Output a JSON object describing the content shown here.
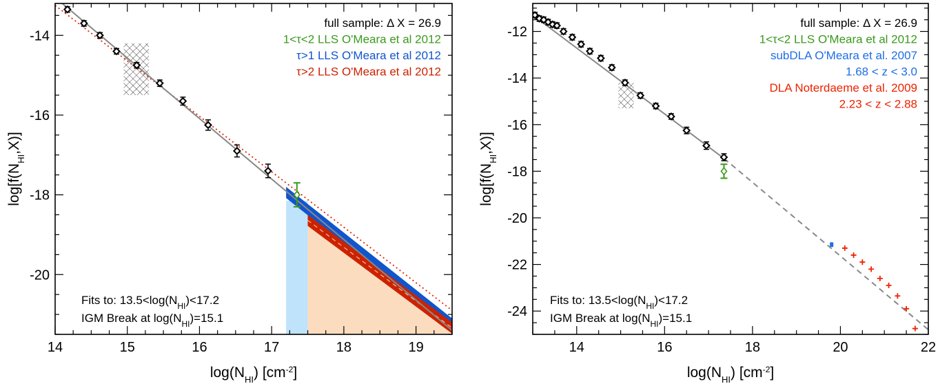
{
  "chart_data": [
    {
      "type": "line",
      "xlabel_main": "log(N",
      "xlabel_sub": "HI",
      "xlabel_tail": ") [cm",
      "xlabel_sup": "-2",
      "xlabel_end": "]",
      "ylabel_main": "log[f(N",
      "ylabel_sub": "HI",
      "ylabel_tail": ",X)]",
      "xlim": [
        14.0,
        19.5
      ],
      "ylim": [
        -21.5,
        -13.2
      ],
      "xticks": [
        14,
        15,
        16,
        17,
        18,
        19
      ],
      "yticks": [
        -14,
        -16,
        -18,
        -20
      ],
      "legend": [
        {
          "text": "full sample: Δ X = 26.9",
          "color": "#000000"
        },
        {
          "text": "1<τ<2 LLS O'Meara et al 2012",
          "color": "#3a9a1c"
        },
        {
          "text": "τ>1 LLS O'Meara et al 2012",
          "color": "#1155cc"
        },
        {
          "text": "τ>2 LLS O'Meara et al 2012",
          "color": "#cc2200"
        }
      ],
      "notes": {
        "line1_pre": "Fits to: 13.5<log(N",
        "line1_sub": "HI",
        "line1_post": ")<17.2",
        "line2_pre": "IGM Break at log(N",
        "line2_sub": "HI",
        "line2_post": ")=15.1"
      },
      "data_points": {
        "x": [
          14.17,
          14.4,
          14.62,
          14.85,
          15.13,
          15.45,
          15.77,
          16.12,
          16.52,
          16.95
        ],
        "y": [
          -13.35,
          -13.7,
          -14.0,
          -14.4,
          -14.75,
          -15.2,
          -15.65,
          -16.25,
          -16.9,
          -17.4
        ],
        "yerr": [
          0.04,
          0.05,
          0.05,
          0.06,
          0.07,
          0.08,
          0.1,
          0.13,
          0.15,
          0.17
        ]
      },
      "hatched_region": {
        "x": [
          14.95,
          15.3
        ],
        "y": [
          -15.5,
          -14.2
        ]
      },
      "fit_line": {
        "x": [
          14.0,
          19.5
        ],
        "y": [
          -13.05,
          -21.4
        ]
      },
      "dotted_line": {
        "x": [
          14.0,
          19.5
        ],
        "y": [
          -13.25,
          -20.9
        ]
      },
      "green_point": {
        "x": 17.35,
        "y": -18.0,
        "yerr_low": 0.3,
        "yerr_high": 0.3
      },
      "blue_band": {
        "x": [
          17.2,
          19.5
        ],
        "y_top_start": -17.8,
        "y_top_end": -21.1,
        "width": 0.28
      },
      "red_band": {
        "x": [
          17.5,
          19.5
        ],
        "y_top_start": -18.5,
        "y_top_end": -21.2,
        "width": 0.28
      },
      "light_blue_region": {
        "x": [
          17.2,
          17.5
        ]
      },
      "peach_region": {
        "x": [
          17.5,
          19.5
        ]
      },
      "colors": {
        "fit": "#888888",
        "dotted": "#dd2200",
        "blue": "#1155cc",
        "red": "#cc2200",
        "green": "#3a9a1c",
        "light_blue": "#bfe3fb",
        "peach": "#fcdcbf"
      }
    },
    {
      "type": "line",
      "xlabel_main": "log(N",
      "xlabel_sub": "HI",
      "xlabel_tail": ") [cm",
      "xlabel_sup": "-2",
      "xlabel_end": "]",
      "ylabel_main": "log[f(N",
      "ylabel_sub": "HI",
      "ylabel_tail": ",X)]",
      "xlim": [
        13.0,
        22.0
      ],
      "ylim": [
        -25.0,
        -10.8
      ],
      "xticks": [
        14,
        16,
        18,
        20,
        22
      ],
      "yticks": [
        -12,
        -14,
        -16,
        -18,
        -20,
        -22,
        -24
      ],
      "legend": [
        {
          "text": "full sample: Δ X = 26.9",
          "color": "#000000"
        },
        {
          "text": "1<τ<2 LLS O'Meara et al 2012",
          "color": "#3a9a1c"
        },
        {
          "text": "subDLA O'Meara et al. 2007",
          "color": "#1e6ee6"
        },
        {
          "text": "1.68 < z < 3.0",
          "color": "#1e6ee6"
        },
        {
          "text": "DLA Noterdaeme et al. 2009",
          "color": "#ee2200"
        },
        {
          "text": "2.23 < z < 2.88",
          "color": "#ee2200"
        }
      ],
      "notes": {
        "line1_pre": "Fits to: 13.5<log(N",
        "line1_sub": "HI",
        "line1_post": ")<17.2",
        "line2_pre": "IGM Break at log(N",
        "line2_sub": "HI",
        "line2_post": ")=15.1"
      },
      "data_points": {
        "x": [
          13.05,
          13.15,
          13.25,
          13.35,
          13.45,
          13.55,
          13.7,
          13.9,
          14.1,
          14.3,
          14.55,
          14.8,
          15.1,
          15.45,
          15.8,
          16.15,
          16.5,
          16.95
        ],
        "y": [
          -11.3,
          -11.45,
          -11.5,
          -11.6,
          -11.7,
          -11.75,
          -12.0,
          -12.25,
          -12.55,
          -12.85,
          -13.15,
          -13.55,
          -14.2,
          -14.75,
          -15.2,
          -15.65,
          -16.25,
          -16.9
        ],
        "yerr": [
          0.03,
          0.03,
          0.03,
          0.03,
          0.03,
          0.03,
          0.04,
          0.04,
          0.04,
          0.05,
          0.05,
          0.06,
          0.07,
          0.08,
          0.1,
          0.12,
          0.14,
          0.16
        ]
      },
      "extra_point": {
        "x": 17.35,
        "y": -17.4,
        "yerr": 0.15
      },
      "hatched_region": {
        "x": [
          14.95,
          15.3
        ],
        "y": [
          -15.3,
          -14.2
        ]
      },
      "fit_line": {
        "x": [
          13.0,
          17.35
        ],
        "y": [
          -11.3,
          -17.45
        ]
      },
      "dashed_line": {
        "x": [
          17.35,
          22.0
        ],
        "y": [
          -17.45,
          -24.8
        ]
      },
      "green_point": {
        "x": 17.35,
        "y": -18.0,
        "yerr_low": 0.3,
        "yerr_high": 0.3
      },
      "blue_point": {
        "x": 19.8,
        "y": -21.15,
        "yerr": 0.1
      },
      "red_points": {
        "x": [
          20.1,
          20.3,
          20.5,
          20.7,
          20.9,
          21.1,
          21.3,
          21.5,
          21.7
        ],
        "y": [
          -21.3,
          -21.6,
          -21.9,
          -22.2,
          -22.6,
          -22.9,
          -23.35,
          -23.9,
          -24.75
        ]
      },
      "colors": {
        "fit": "#888888",
        "dashed": "#888888",
        "green": "#3a9a1c",
        "blue": "#1e6ee6",
        "red": "#ee2200"
      }
    }
  ]
}
